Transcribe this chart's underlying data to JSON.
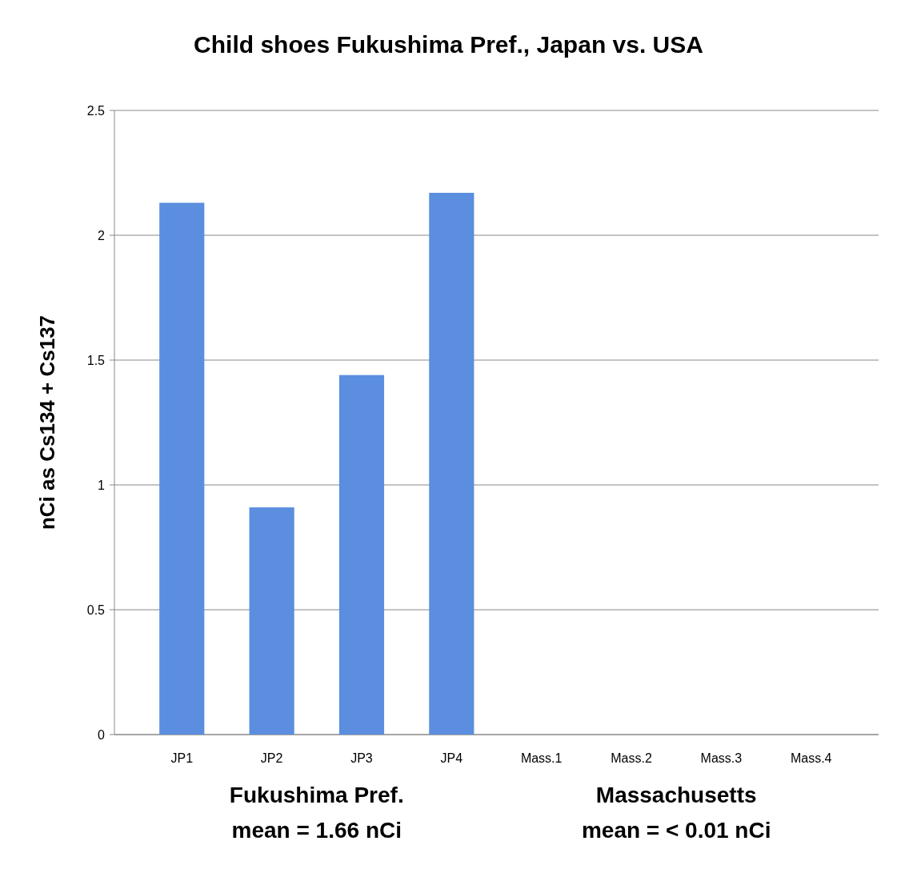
{
  "chart_data": {
    "type": "bar",
    "title": "Child shoes Fukushima Pref., Japan vs. USA",
    "ylabel": "nCi as Cs134 + Cs137",
    "categories": [
      "JP1",
      "JP2",
      "JP3",
      "JP4",
      "Mass.1",
      "Mass.2",
      "Mass.3",
      "Mass.4"
    ],
    "values": [
      2.13,
      0.91,
      1.44,
      2.17,
      0,
      0,
      0,
      0
    ],
    "color": "#5b8ede",
    "ylim": [
      0,
      2.5
    ],
    "yticks": [
      0,
      0.5,
      1,
      1.5,
      2,
      2.5
    ],
    "grid": "y",
    "annotations": [
      "Fukushima Pref.\nmean = 1.66 nCi",
      "Massachusetts\nmean = < 0.01 nCi"
    ]
  }
}
